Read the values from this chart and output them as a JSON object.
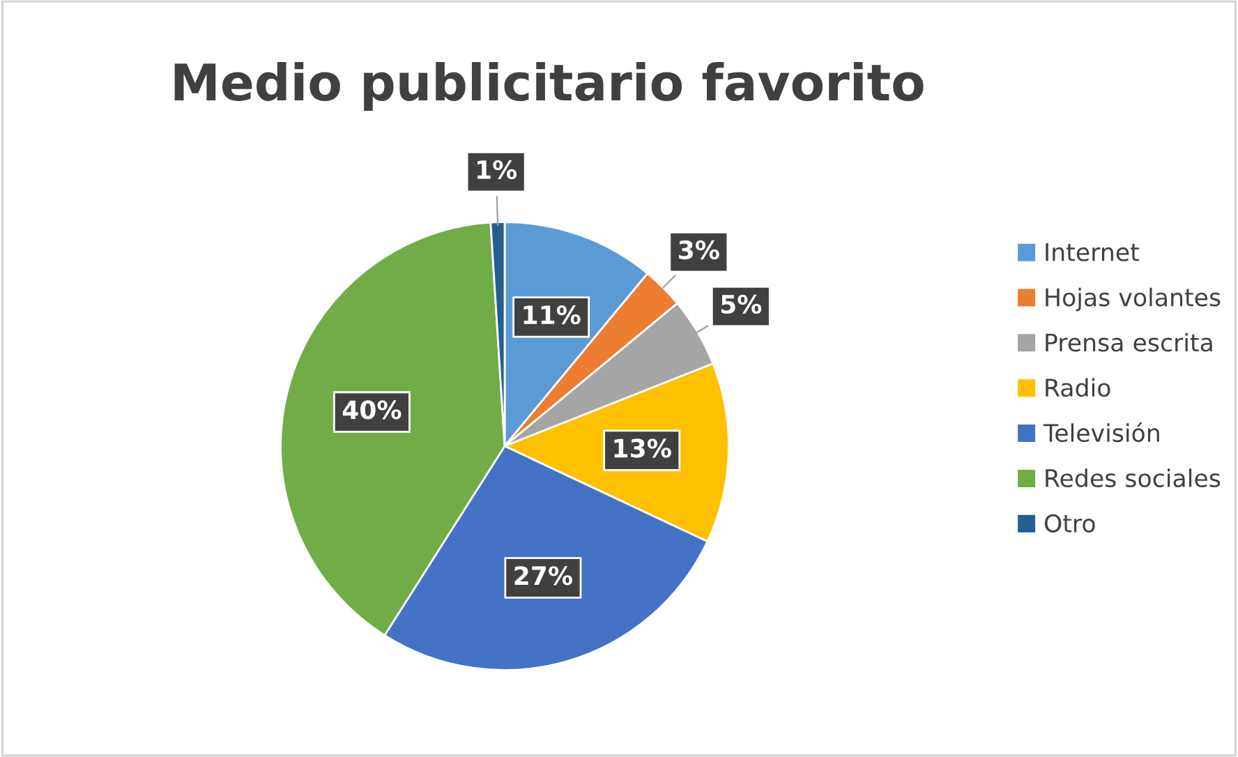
{
  "chart_data": {
    "type": "pie",
    "title": "Medio publicitario favorito",
    "categories": [
      "Internet",
      "Hojas volantes",
      "Prensa escrita",
      "Radio",
      "Televisión",
      "Redes sociales",
      "Otro"
    ],
    "values": [
      11,
      3,
      5,
      13,
      27,
      40,
      1
    ],
    "colors": [
      "#5b9bd5",
      "#ed7d31",
      "#a5a5a5",
      "#ffc000",
      "#4472c4",
      "#70ad47",
      "#255e91"
    ],
    "value_labels": [
      "11%",
      "3%",
      "5%",
      "13%",
      "27%",
      "40%",
      "1%"
    ],
    "legend": "right"
  }
}
